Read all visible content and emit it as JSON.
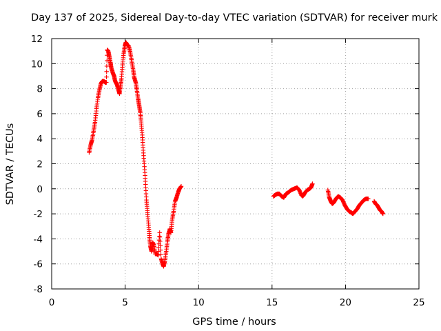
{
  "chart_data": {
    "type": "scatter",
    "title": "Day 137 of 2025, Sidereal Day-to-day VTEC variation (SDTVAR) for receiver murk",
    "xlabel": "GPS time / hours",
    "ylabel": "SDTVAR / TECUs",
    "xlim": [
      0,
      25
    ],
    "ylim": [
      -8,
      12
    ],
    "xticks": [
      "0",
      "5",
      "10",
      "15",
      "20",
      "25"
    ],
    "yticks": [
      "-8",
      "-6",
      "-4",
      "-2",
      "0",
      "2",
      "4",
      "6",
      "8",
      "10",
      "12"
    ],
    "grid": true,
    "marker": "plus",
    "colors": {
      "series": "#ff0000"
    },
    "segments": [
      [
        [
          2.55,
          2.9
        ],
        [
          2.65,
          3.5
        ],
        [
          2.75,
          3.9
        ],
        [
          2.85,
          4.6
        ],
        [
          2.95,
          5.3
        ],
        [
          3.05,
          6.4
        ],
        [
          3.15,
          7.3
        ],
        [
          3.25,
          7.9
        ],
        [
          3.35,
          8.4
        ],
        [
          3.45,
          8.6
        ],
        [
          3.55,
          8.6
        ],
        [
          3.65,
          8.5
        ],
        [
          3.72,
          8.5
        ],
        [
          3.78,
          11.1
        ],
        [
          3.85,
          11.0
        ],
        [
          3.92,
          10.6
        ],
        [
          4.0,
          10.1
        ],
        [
          4.05,
          9.7
        ],
        [
          4.15,
          9.3
        ],
        [
          4.25,
          9.0
        ],
        [
          4.32,
          8.6
        ],
        [
          4.45,
          8.3
        ],
        [
          4.55,
          7.9
        ],
        [
          4.62,
          7.6
        ],
        [
          4.68,
          8.2
        ],
        [
          4.75,
          8.8
        ],
        [
          4.82,
          9.9
        ],
        [
          4.9,
          10.8
        ],
        [
          4.98,
          11.4
        ],
        [
          5.05,
          11.7
        ],
        [
          5.15,
          11.5
        ],
        [
          5.25,
          11.4
        ],
        [
          5.35,
          10.9
        ],
        [
          5.45,
          10.2
        ],
        [
          5.55,
          9.5
        ],
        [
          5.62,
          8.9
        ],
        [
          5.72,
          8.5
        ],
        [
          5.8,
          7.9
        ],
        [
          5.88,
          7.2
        ],
        [
          5.95,
          6.7
        ],
        [
          6.02,
          6.2
        ],
        [
          6.08,
          5.5
        ],
        [
          6.15,
          4.5
        ],
        [
          6.22,
          3.3
        ],
        [
          6.3,
          2.0
        ],
        [
          6.38,
          0.6
        ],
        [
          6.45,
          -0.9
        ],
        [
          6.52,
          -1.9
        ],
        [
          6.6,
          -2.9
        ],
        [
          6.66,
          -3.9
        ],
        [
          6.72,
          -4.6
        ],
        [
          6.8,
          -5.0
        ],
        [
          6.88,
          -4.3
        ],
        [
          6.95,
          -4.5
        ],
        [
          7.05,
          -5.2
        ],
        [
          7.15,
          -5.2
        ],
        [
          7.25,
          -5.3
        ],
        [
          7.35,
          -3.5
        ],
        [
          7.45,
          -5.6
        ],
        [
          7.55,
          -6.0
        ],
        [
          7.62,
          -6.2
        ],
        [
          7.7,
          -5.8
        ],
        [
          7.8,
          -5.0
        ],
        [
          7.88,
          -4.2
        ],
        [
          7.95,
          -3.6
        ],
        [
          8.05,
          -3.2
        ],
        [
          8.12,
          -3.5
        ],
        [
          8.2,
          -2.5
        ],
        [
          8.3,
          -1.8
        ],
        [
          8.4,
          -1.0
        ],
        [
          8.5,
          -0.7
        ],
        [
          8.6,
          -0.3
        ],
        [
          8.7,
          0.0
        ],
        [
          8.82,
          0.2
        ]
      ],
      [
        [
          15.1,
          -0.6
        ],
        [
          15.2,
          -0.5
        ],
        [
          15.35,
          -0.4
        ],
        [
          15.5,
          -0.4
        ],
        [
          15.65,
          -0.6
        ],
        [
          15.8,
          -0.7
        ],
        [
          15.95,
          -0.4
        ],
        [
          16.1,
          -0.3
        ],
        [
          16.3,
          -0.1
        ],
        [
          16.5,
          0.0
        ],
        [
          16.7,
          0.1
        ],
        [
          16.85,
          -0.1
        ],
        [
          17.0,
          -0.5
        ],
        [
          17.1,
          -0.6
        ],
        [
          17.25,
          -0.3
        ],
        [
          17.4,
          -0.1
        ],
        [
          17.55,
          0.0
        ],
        [
          17.65,
          0.1
        ],
        [
          17.75,
          0.4
        ]
      ],
      [
        [
          18.8,
          -0.1
        ],
        [
          18.9,
          -0.7
        ],
        [
          19.0,
          -1.0
        ],
        [
          19.1,
          -1.2
        ],
        [
          19.2,
          -1.1
        ],
        [
          19.35,
          -0.8
        ],
        [
          19.5,
          -0.6
        ],
        [
          19.65,
          -0.7
        ],
        [
          19.8,
          -0.9
        ],
        [
          19.95,
          -1.3
        ],
        [
          20.1,
          -1.6
        ],
        [
          20.25,
          -1.8
        ],
        [
          20.4,
          -1.9
        ],
        [
          20.5,
          -2.0
        ],
        [
          20.65,
          -1.8
        ],
        [
          20.8,
          -1.6
        ],
        [
          20.95,
          -1.3
        ],
        [
          21.1,
          -1.1
        ],
        [
          21.25,
          -0.9
        ],
        [
          21.4,
          -0.8
        ],
        [
          21.55,
          -0.8
        ]
      ],
      [
        [
          21.95,
          -1.0
        ],
        [
          22.05,
          -1.2
        ],
        [
          22.15,
          -1.3
        ],
        [
          22.25,
          -1.5
        ],
        [
          22.35,
          -1.7
        ],
        [
          22.45,
          -1.8
        ],
        [
          22.55,
          -2.0
        ]
      ]
    ]
  }
}
